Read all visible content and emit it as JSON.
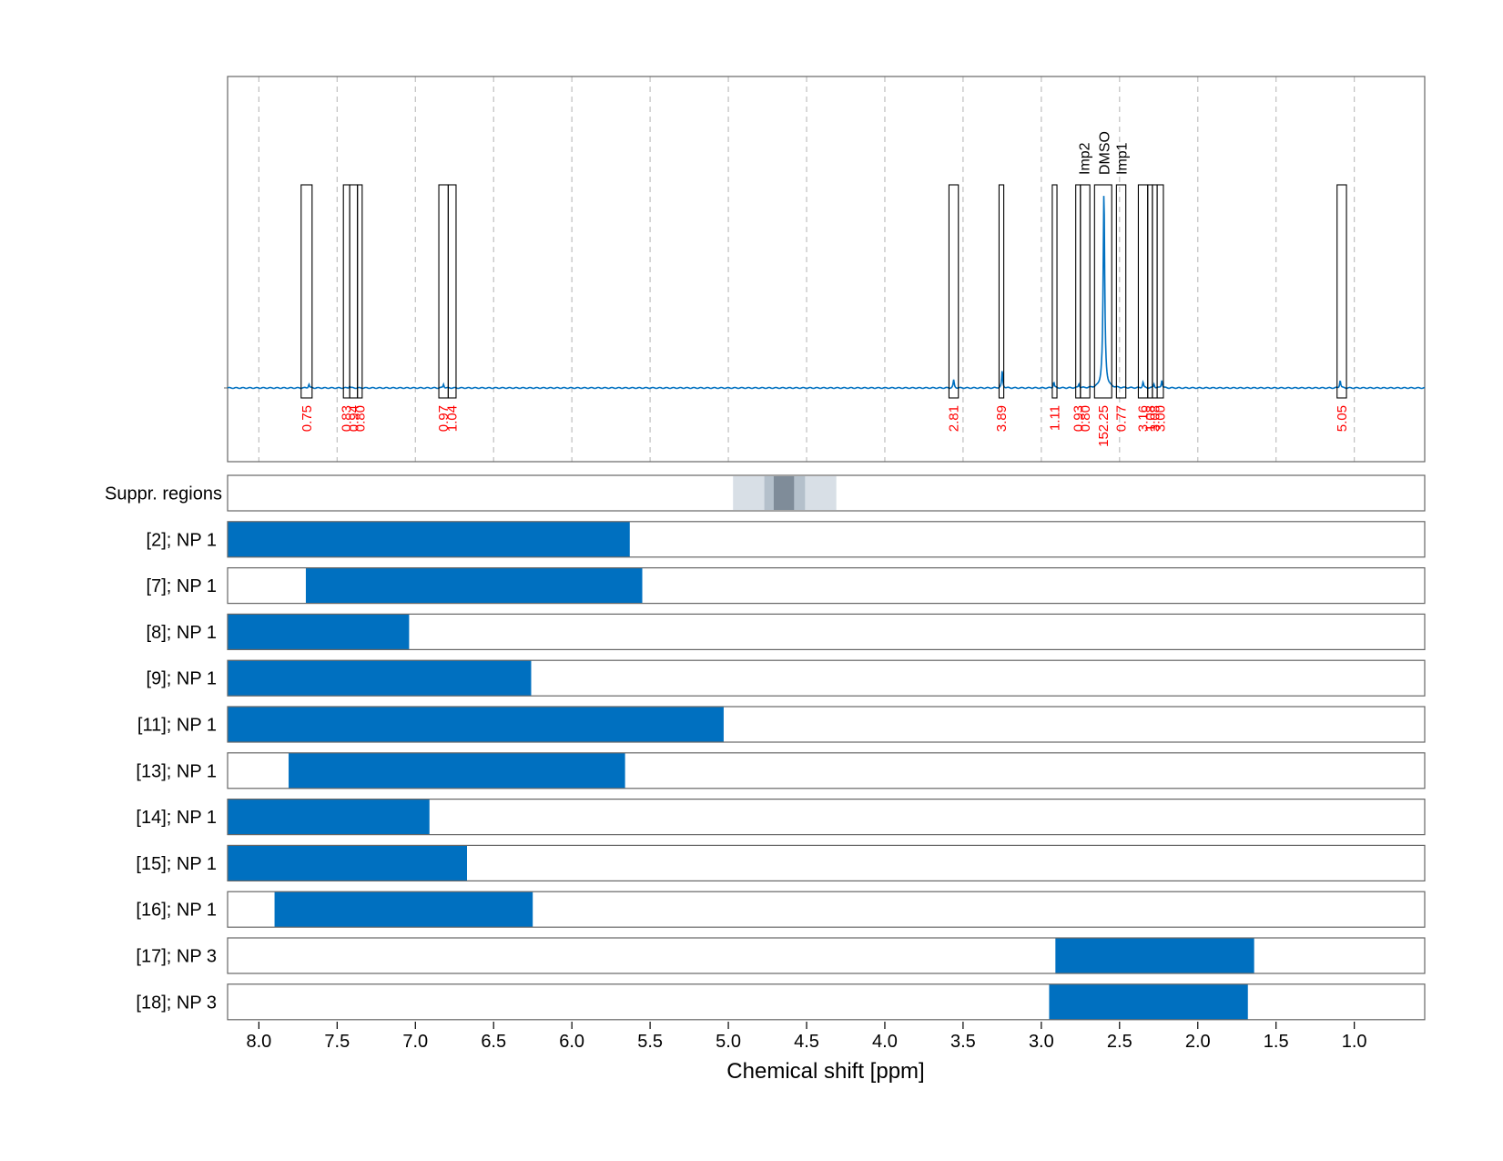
{
  "chart_data": {
    "type": "nmr-spectrum-with-region-bars",
    "xlabel": "Chemical shift [ppm]",
    "xlim": [
      8.2,
      0.55
    ],
    "x_ticks": [
      8.0,
      7.5,
      7.0,
      6.5,
      6.0,
      5.5,
      5.0,
      4.5,
      4.0,
      3.5,
      3.0,
      2.5,
      2.0,
      1.5,
      1.0
    ],
    "x_tick_labels": [
      "8.0",
      "7.5",
      "7.0",
      "6.5",
      "6.0",
      "5.5",
      "5.0",
      "4.5",
      "4.0",
      "3.5",
      "3.0",
      "2.5",
      "2.0",
      "1.5",
      "1.0"
    ],
    "grid": "vertical dashed",
    "colors": {
      "spectrum": "#0070C0",
      "bar": "#0070C0",
      "integral_label": "#FF0000",
      "suppression": "#7F8C99"
    },
    "peaks": [
      {
        "ppm": 7.68,
        "height": 0.02
      },
      {
        "ppm": 7.42,
        "height": 0.01
      },
      {
        "ppm": 6.82,
        "height": 0.02
      },
      {
        "ppm": 3.56,
        "height": 0.04
      },
      {
        "ppm": 3.25,
        "height": 0.09
      },
      {
        "ppm": 2.92,
        "height": 0.03
      },
      {
        "ppm": 2.76,
        "height": 0.02
      },
      {
        "ppm": 2.6,
        "height": 1.0
      },
      {
        "ppm": 2.35,
        "height": 0.03
      },
      {
        "ppm": 2.28,
        "height": 0.02
      },
      {
        "ppm": 2.23,
        "height": 0.04
      },
      {
        "ppm": 1.09,
        "height": 0.04
      }
    ],
    "integrals": [
      {
        "label": "0.75",
        "from": 7.73,
        "to": 7.66
      },
      {
        "label": "0.83",
        "from": 7.46,
        "to": 7.42
      },
      {
        "label": "0.94",
        "from": 7.42,
        "to": 7.37
      },
      {
        "label": "0.80",
        "from": 7.37,
        "to": 7.34
      },
      {
        "label": "0.97",
        "from": 6.85,
        "to": 6.79
      },
      {
        "label": "1.04",
        "from": 6.79,
        "to": 6.74
      },
      {
        "label": "2.81",
        "from": 3.59,
        "to": 3.53
      },
      {
        "label": "3.89",
        "from": 3.27,
        "to": 3.24
      },
      {
        "label": "1.11",
        "from": 2.93,
        "to": 2.9
      },
      {
        "label": "0.93",
        "from": 2.78,
        "to": 2.75
      },
      {
        "label": "0.80",
        "from": 2.75,
        "to": 2.69
      },
      {
        "label": "152.25",
        "from": 2.66,
        "to": 2.55
      },
      {
        "label": "0.77",
        "from": 2.52,
        "to": 2.46
      },
      {
        "label": "3.16",
        "from": 2.38,
        "to": 2.32
      },
      {
        "label": "1.08",
        "from": 2.32,
        "to": 2.29
      },
      {
        "label": "3.08",
        "from": 2.29,
        "to": 2.26
      },
      {
        "label": "3.00",
        "from": 2.26,
        "to": 2.22
      },
      {
        "label": "5.05",
        "from": 1.11,
        "to": 1.05
      }
    ],
    "annotations": [
      {
        "label": "Imp2",
        "ppm": 2.73
      },
      {
        "label": "DMSO",
        "ppm": 2.6
      },
      {
        "label": "Imp1",
        "ppm": 2.49
      }
    ],
    "suppression": {
      "label": "Suppr. regions",
      "bands": [
        {
          "from": 4.97,
          "to": 4.31,
          "level": "light"
        },
        {
          "from": 4.77,
          "to": 4.51,
          "level": "medium"
        },
        {
          "from": 4.71,
          "to": 4.58,
          "level": "dark"
        }
      ]
    },
    "bars": [
      {
        "label": "[2]; NP 1",
        "from": 8.2,
        "to": 5.63
      },
      {
        "label": "[7]; NP 1",
        "from": 7.7,
        "to": 5.55
      },
      {
        "label": "[8]; NP 1",
        "from": 8.2,
        "to": 7.04
      },
      {
        "label": "[9]; NP 1",
        "from": 8.2,
        "to": 6.26
      },
      {
        "label": "[11]; NP 1",
        "from": 8.2,
        "to": 5.03
      },
      {
        "label": "[13]; NP 1",
        "from": 7.81,
        "to": 5.66
      },
      {
        "label": "[14]; NP 1",
        "from": 8.2,
        "to": 6.91
      },
      {
        "label": "[15]; NP 1",
        "from": 8.2,
        "to": 6.67
      },
      {
        "label": "[16]; NP 1",
        "from": 7.9,
        "to": 6.25
      },
      {
        "label": "[17]; NP 3",
        "from": 2.91,
        "to": 1.64
      },
      {
        "label": "[18]; NP 3",
        "from": 2.95,
        "to": 1.68
      }
    ]
  }
}
